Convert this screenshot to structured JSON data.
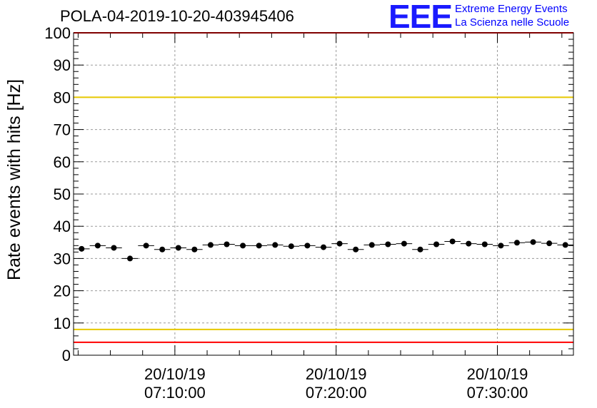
{
  "header": {
    "title": "POLA-04-2019-10-20-403945406",
    "logo_text": "EEE",
    "logo_line1": "Extreme Energy Events",
    "logo_line2": "La Scienza nelle Scuole",
    "logo_color": "#1a1aff"
  },
  "chart_data": {
    "type": "scatter",
    "title": "POLA-04-2019-10-20-403945406",
    "xlabel": "",
    "ylabel": "Rate events with hits [Hz]",
    "ylim": [
      0,
      100
    ],
    "xlim": [
      "2019-10-20 07:03:43",
      "2019-10-20 07:34:43"
    ],
    "y_ticks": [
      0,
      10,
      20,
      30,
      40,
      50,
      60,
      70,
      80,
      90,
      100
    ],
    "x_ticks": [
      {
        "time": "2019-10-20 07:10:00",
        "date_label": "20/10/19",
        "time_label": "07:10:00"
      },
      {
        "time": "2019-10-20 07:20:00",
        "date_label": "20/10/19",
        "time_label": "07:20:00"
      },
      {
        "time": "2019-10-20 07:30:00",
        "date_label": "20/10/19",
        "time_label": "07:30:00"
      }
    ],
    "grid": true,
    "bin_width_seconds": 60,
    "series": [
      {
        "marker_color": "#000000",
        "x": [
          "07:04:13",
          "07:05:13",
          "07:06:13",
          "07:07:13",
          "07:08:13",
          "07:09:13",
          "07:10:13",
          "07:11:13",
          "07:12:13",
          "07:13:13",
          "07:14:13",
          "07:15:13",
          "07:16:13",
          "07:17:13",
          "07:18:13",
          "07:19:13",
          "07:20:13",
          "07:21:13",
          "07:22:13",
          "07:23:13",
          "07:24:13",
          "07:25:13",
          "07:26:13",
          "07:27:13",
          "07:28:13",
          "07:29:13",
          "07:30:13",
          "07:31:13",
          "07:32:13",
          "07:33:13",
          "07:34:13"
        ],
        "y": [
          33.0,
          34.0,
          33.3,
          30.0,
          34.0,
          32.8,
          33.3,
          32.8,
          34.2,
          34.4,
          34.0,
          34.0,
          34.2,
          33.8,
          34.0,
          33.5,
          34.6,
          32.8,
          34.2,
          34.4,
          34.6,
          32.8,
          34.4,
          35.3,
          34.6,
          34.4,
          34.0,
          34.9,
          35.1,
          34.7,
          34.2
        ]
      }
    ],
    "reference_lines": [
      {
        "y": 100,
        "color": "#ff0000"
      },
      {
        "y": 80,
        "color": "#e6c800"
      },
      {
        "y": 8,
        "color": "#e6c800"
      },
      {
        "y": 4,
        "color": "#ff0000"
      }
    ]
  }
}
